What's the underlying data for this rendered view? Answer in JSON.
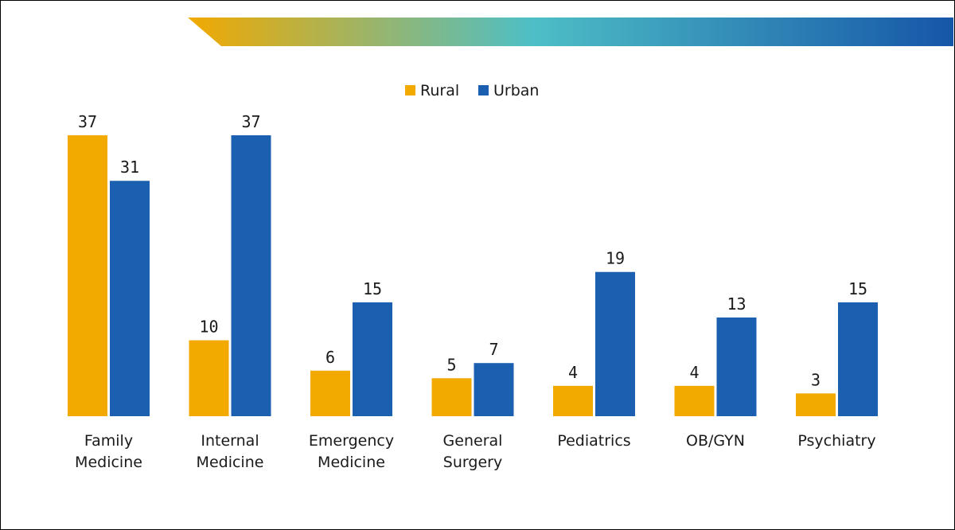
{
  "chart_data": {
    "type": "bar",
    "title": "",
    "xlabel": "",
    "ylabel": "",
    "ylim": [
      0,
      37
    ],
    "categories": [
      [
        "Family",
        "Medicine"
      ],
      [
        "Internal",
        "Medicine"
      ],
      [
        "Emergency",
        "Medicine"
      ],
      [
        "General",
        "Surgery"
      ],
      [
        "Pediatrics"
      ],
      [
        "OB/GYN"
      ],
      [
        "Psychiatry"
      ]
    ],
    "series": [
      {
        "name": "Rural",
        "color": "#F2A900",
        "values": [
          37,
          10,
          6,
          5,
          4,
          4,
          3
        ]
      },
      {
        "name": "Urban",
        "color": "#1B5FB0",
        "values": [
          31,
          37,
          15,
          7,
          19,
          13,
          15
        ]
      }
    ],
    "legend_position": "top-center",
    "grid": false
  },
  "decor": {
    "banner_gradient": [
      "#F2A900",
      "#4EBFC6",
      "#1656A8"
    ]
  }
}
